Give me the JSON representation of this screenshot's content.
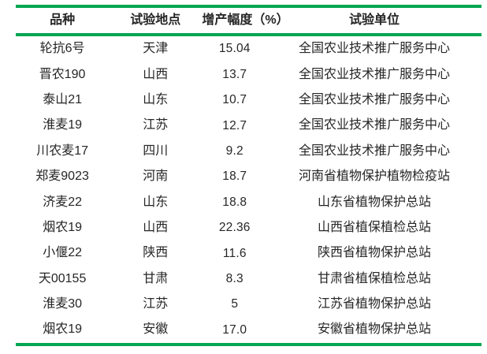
{
  "page": {
    "background": "#ffffff",
    "accent_green": "#00A651",
    "text_color": "#262626"
  },
  "table": {
    "columns": [
      "品种",
      "试验地点",
      "增产幅度（%）",
      "试验单位"
    ],
    "rows": [
      {
        "variety": "轮抗6号",
        "location": "天津",
        "increase": "15.04",
        "unit": "全国农业技术推广服务中心"
      },
      {
        "variety": "晋农190",
        "location": "山西",
        "increase": "13.7",
        "unit": "全国农业技术推广服务中心"
      },
      {
        "variety": "泰山21",
        "location": "山东",
        "increase": "10.7",
        "unit": "全国农业技术推广服务中心"
      },
      {
        "variety": "淮麦19",
        "location": "江苏",
        "increase": "12.7",
        "unit": "全国农业技术推广服务中心"
      },
      {
        "variety": "川农麦17",
        "location": "四川",
        "increase": "9.2",
        "unit": "全国农业技术推广服务中心"
      },
      {
        "variety": "郑麦9023",
        "location": "河南",
        "increase": "18.7",
        "unit": "河南省植物保护植物检疫站"
      },
      {
        "variety": "济麦22",
        "location": "山东",
        "increase": "18.8",
        "unit": "山东省植物保护总站"
      },
      {
        "variety": "烟农19",
        "location": "山西",
        "increase": "22.36",
        "unit": "山西省植保植检总站"
      },
      {
        "variety": "小偃22",
        "location": "陕西",
        "increase": "11.6",
        "unit": "陕西省植物保护总站"
      },
      {
        "variety": "天00155",
        "location": "甘肃",
        "increase": "8.3",
        "unit": "甘肃省植保植检总站"
      },
      {
        "variety": "淮麦30",
        "location": "江苏",
        "increase": "5",
        "unit": "江苏省植物保护总站"
      },
      {
        "variety": "烟农19",
        "location": "安徽",
        "increase": "17.0",
        "unit": "安徽省植物保护总站"
      }
    ]
  }
}
